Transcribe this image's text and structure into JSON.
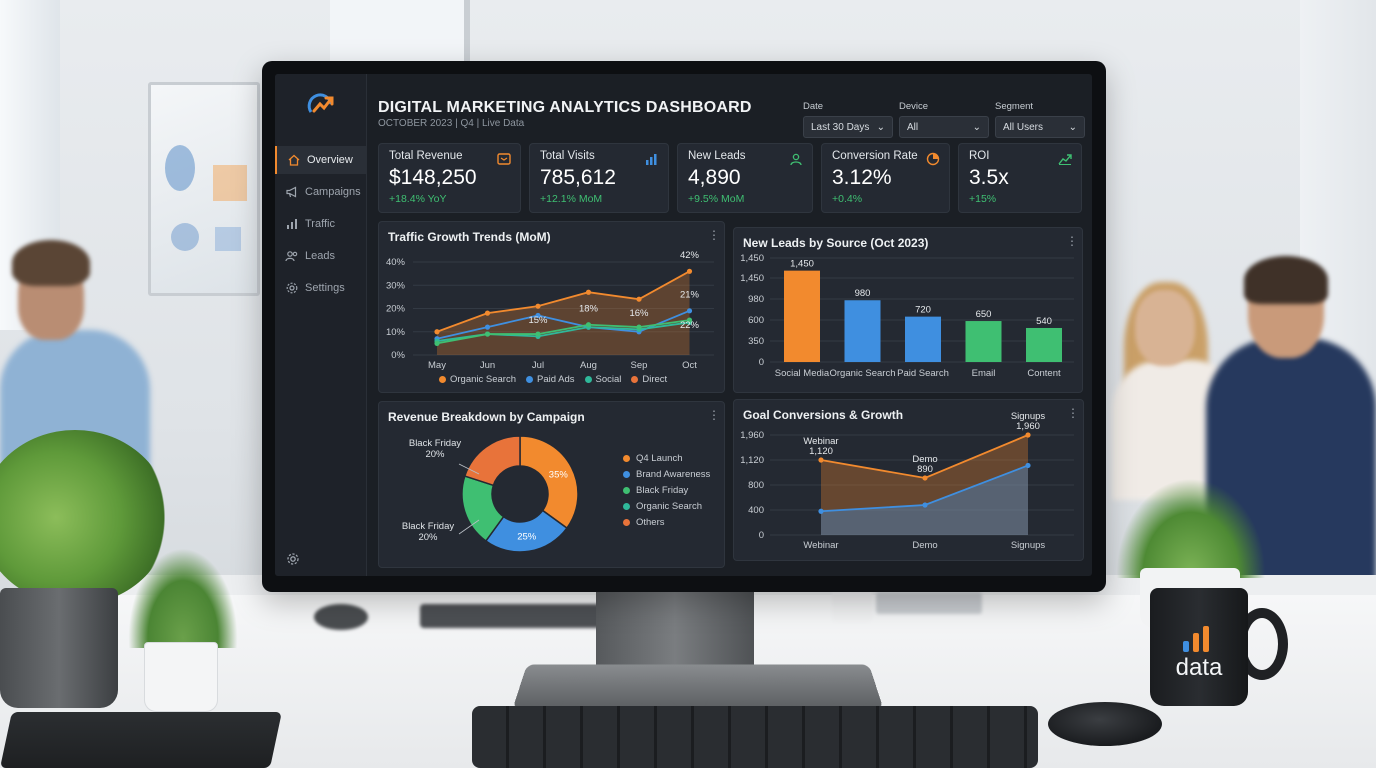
{
  "sidebar": {
    "items": [
      {
        "label": "Overview",
        "icon": "home-icon",
        "active": true
      },
      {
        "label": "Campaigns",
        "icon": "megaphone-icon",
        "active": false
      },
      {
        "label": "Traffic",
        "icon": "bar-chart-icon",
        "active": false
      },
      {
        "label": "Leads",
        "icon": "users-icon",
        "active": false
      },
      {
        "label": "Settings",
        "icon": "gear-icon",
        "active": false
      }
    ]
  },
  "header": {
    "title": "DIGITAL MARKETING ANALYTICS DASHBOARD",
    "subtitle": "OCTOBER 2023 | Q4 | Live Data"
  },
  "filters": [
    {
      "label": "Date",
      "value": "Last 30 Days"
    },
    {
      "label": "Device",
      "value": "All"
    },
    {
      "label": "Segment",
      "value": "All Users"
    }
  ],
  "kpis": [
    {
      "label": "Total Revenue",
      "value": "$148,250",
      "delta": "+18.4% YoY",
      "icon": "wallet-icon",
      "icon_color": "#f28a2e"
    },
    {
      "label": "Total Visits",
      "value": "785,612",
      "delta": "+12.1% MoM",
      "icon": "bars-icon",
      "icon_color": "#3f8fe0"
    },
    {
      "label": "New Leads",
      "value": "4,890",
      "delta": "+9.5% MoM",
      "icon": "user-icon",
      "icon_color": "#3fbf72"
    },
    {
      "label": "Conversion Rate",
      "value": "3.12%",
      "delta": "+0.4%",
      "icon": "pie-icon",
      "icon_color": "#f28a2e"
    },
    {
      "label": "ROI",
      "value": "3.5x",
      "delta": "+15%",
      "icon": "trend-icon",
      "icon_color": "#3fbf72"
    }
  ],
  "colors": {
    "orange": "#f28a2e",
    "blue": "#3f8fe0",
    "green": "#3fbf72",
    "teal": "#2fb89a",
    "red_orange": "#e8733a"
  },
  "chart_data": [
    {
      "type": "line",
      "title": "Traffic Growth Trends (MoM)",
      "categories": [
        "May",
        "Jun",
        "Jul",
        "Aug",
        "Sep",
        "Oct"
      ],
      "yticks": [
        "0%",
        "10%",
        "20%",
        "30%",
        "40%"
      ],
      "ylim": [
        0,
        40
      ],
      "series": [
        {
          "name": "Organic Search",
          "values": [
            10,
            18,
            21,
            27,
            24,
            36
          ],
          "color": "#f28a2e"
        },
        {
          "name": "Paid Ads",
          "values": [
            7,
            12,
            17,
            12,
            10,
            19
          ],
          "color": "#3f8fe0"
        },
        {
          "name": "Social",
          "values": [
            6,
            9,
            8,
            12,
            11,
            14
          ],
          "color": "#2fb89a"
        },
        {
          "name": "Direct",
          "values": [
            5,
            9,
            9,
            13,
            12,
            15
          ],
          "color": "#3fbf72"
        }
      ],
      "annotations": [
        {
          "text": "42%",
          "cat": 5,
          "y": 40
        },
        {
          "text": "21%",
          "cat": 5,
          "y": 23
        },
        {
          "text": "22%",
          "cat": 5,
          "y": 10
        },
        {
          "text": "15%",
          "cat": 2,
          "y": 12
        },
        {
          "text": "18%",
          "cat": 3,
          "y": 17
        },
        {
          "text": "16%",
          "cat": 4,
          "y": 15
        }
      ],
      "legend": [
        "Organic Search",
        "Paid Ads",
        "Social",
        "Direct"
      ],
      "legend_colors": [
        "#f28a2e",
        "#3f8fe0",
        "#2fb89a",
        "#e8733a"
      ]
    },
    {
      "type": "bar",
      "title": "New Leads by Source (Oct 2023)",
      "categories": [
        "Social Media",
        "Organic Search",
        "Paid Search",
        "Email",
        "Content"
      ],
      "values": [
        1450,
        980,
        720,
        650,
        540
      ],
      "value_labels": [
        "1,450",
        "980",
        "720",
        "650",
        "540"
      ],
      "colors": [
        "#f28a2e",
        "#3f8fe0",
        "#3f8fe0",
        "#3fbf72",
        "#3fbf72"
      ],
      "yticks": [
        "0",
        "350",
        "600",
        "980",
        "1,450",
        "1,450"
      ],
      "ylim": [
        0,
        1700
      ]
    },
    {
      "type": "pie",
      "title": "Revenue Breakdown by Campaign",
      "slices": [
        {
          "label": "Q4 Launch",
          "value": 35,
          "color": "#f28a2e",
          "text": "35%"
        },
        {
          "label": "Brand Awareness",
          "value": 25,
          "color": "#3f8fe0",
          "text": "25%"
        },
        {
          "label": "Black Friday",
          "value": 20,
          "color": "#3fbf72",
          "text": ""
        },
        {
          "label": "Organic Search",
          "value": 20,
          "color": "#e8733a",
          "text": ""
        }
      ],
      "callouts": [
        {
          "text": "Black Friday",
          "pct": "20%"
        },
        {
          "text": "Black Friday",
          "pct": "20%"
        }
      ],
      "legend": [
        "Q4 Launch",
        "Brand Awareness",
        "Black Friday",
        "Organic Search",
        "Others"
      ],
      "legend_colors": [
        "#f28a2e",
        "#3f8fe0",
        "#3fbf72",
        "#2fb89a",
        "#e8733a"
      ]
    },
    {
      "type": "area",
      "title": "Goal Conversions & Growth",
      "categories": [
        "Webinar",
        "Demo",
        "Signups"
      ],
      "yticks": [
        "0",
        "400",
        "800",
        "1,120",
        "1,960"
      ],
      "ylim": [
        0,
        1960
      ],
      "series": [
        {
          "values": [
            1120,
            890,
            1960
          ],
          "color": "#f28a2e"
        },
        {
          "values": [
            380,
            480,
            1050
          ],
          "color": "#3f8fe0"
        }
      ],
      "point_labels": [
        {
          "name": "Webinar",
          "value": "1,120"
        },
        {
          "name": "Demo",
          "value": "890"
        },
        {
          "name": "Signups",
          "value": "1,960"
        }
      ]
    }
  ],
  "mug": {
    "text": "data"
  }
}
